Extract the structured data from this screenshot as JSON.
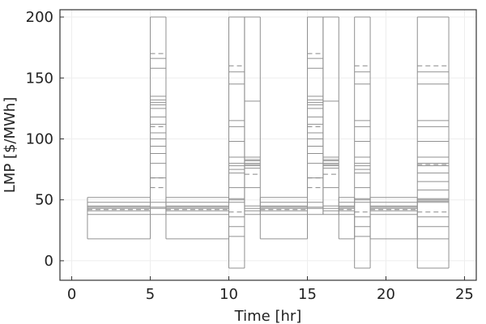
{
  "chart_data": {
    "type": "line",
    "title": "",
    "xlabel": "Time [hr]",
    "ylabel": "LMP [$/MWh]",
    "xlim": [
      -0.75,
      25.75
    ],
    "ylim": [
      -16,
      206
    ],
    "xticks": [
      0,
      5,
      10,
      15,
      20,
      25
    ],
    "yticks": [
      0,
      50,
      100,
      150,
      200
    ],
    "grid": true,
    "legend": "none",
    "colors": {
      "solid": "#909090",
      "dashed": "#888888",
      "frame": "#333333",
      "grid": "#eeeeee"
    },
    "segments": [
      {
        "x0": 1,
        "x1": 5,
        "values": [
          52,
          48,
          45,
          44,
          43,
          41,
          38,
          18
        ],
        "dashed": [
          42
        ]
      },
      {
        "x0": 5,
        "x1": 6,
        "values": [
          200,
          166,
          158,
          135,
          132,
          130,
          128,
          125,
          118,
          112,
          105,
          100,
          94,
          88,
          80,
          68,
          48,
          44,
          43,
          38
        ],
        "dashed": [
          170,
          110,
          68,
          60
        ]
      },
      {
        "x0": 6,
        "x1": 10,
        "values": [
          52,
          48,
          45,
          44,
          43,
          41,
          38,
          18
        ],
        "dashed": [
          42
        ]
      },
      {
        "x0": 10,
        "x1": 11,
        "values": [
          200,
          155,
          145,
          115,
          110,
          98,
          85,
          80,
          78,
          75,
          72,
          60,
          51,
          50,
          48,
          36,
          28,
          20,
          -6
        ],
        "dashed": [
          160,
          40
        ]
      },
      {
        "x0": 11,
        "x1": 12,
        "values": [
          200,
          131,
          85,
          83,
          82,
          80,
          79,
          78,
          76,
          60,
          45,
          43,
          41,
          38
        ],
        "dashed": [
          71
        ]
      },
      {
        "x0": 12,
        "x1": 15,
        "values": [
          52,
          48,
          45,
          44,
          43,
          41,
          38,
          18
        ],
        "dashed": [
          42
        ]
      },
      {
        "x0": 15,
        "x1": 16,
        "values": [
          200,
          166,
          158,
          135,
          132,
          130,
          128,
          125,
          118,
          112,
          105,
          100,
          94,
          88,
          80,
          68,
          48,
          44,
          43,
          38
        ],
        "dashed": [
          170,
          110,
          68,
          60
        ]
      },
      {
        "x0": 16,
        "x1": 17,
        "values": [
          200,
          131,
          85,
          83,
          82,
          80,
          79,
          78,
          76,
          60,
          45,
          43,
          41,
          38
        ],
        "dashed": [
          71
        ]
      },
      {
        "x0": 17,
        "x1": 18,
        "values": [
          52,
          48,
          45,
          44,
          43,
          41,
          38,
          18
        ],
        "dashed": [
          42
        ]
      },
      {
        "x0": 18,
        "x1": 19,
        "values": [
          200,
          155,
          145,
          115,
          110,
          98,
          85,
          80,
          78,
          75,
          72,
          60,
          51,
          50,
          48,
          36,
          28,
          20,
          -6
        ],
        "dashed": [
          160,
          40
        ]
      },
      {
        "x0": 19,
        "x1": 22,
        "values": [
          52,
          48,
          45,
          44,
          43,
          41,
          38,
          18
        ],
        "dashed": [
          42
        ]
      },
      {
        "x0": 22,
        "x1": 24,
        "values": [
          200,
          155,
          145,
          115,
          110,
          98,
          85,
          80,
          78,
          72,
          65,
          58,
          51,
          50,
          49,
          48,
          36,
          28,
          18,
          -6
        ],
        "dashed": [
          160,
          79,
          40
        ]
      }
    ]
  }
}
